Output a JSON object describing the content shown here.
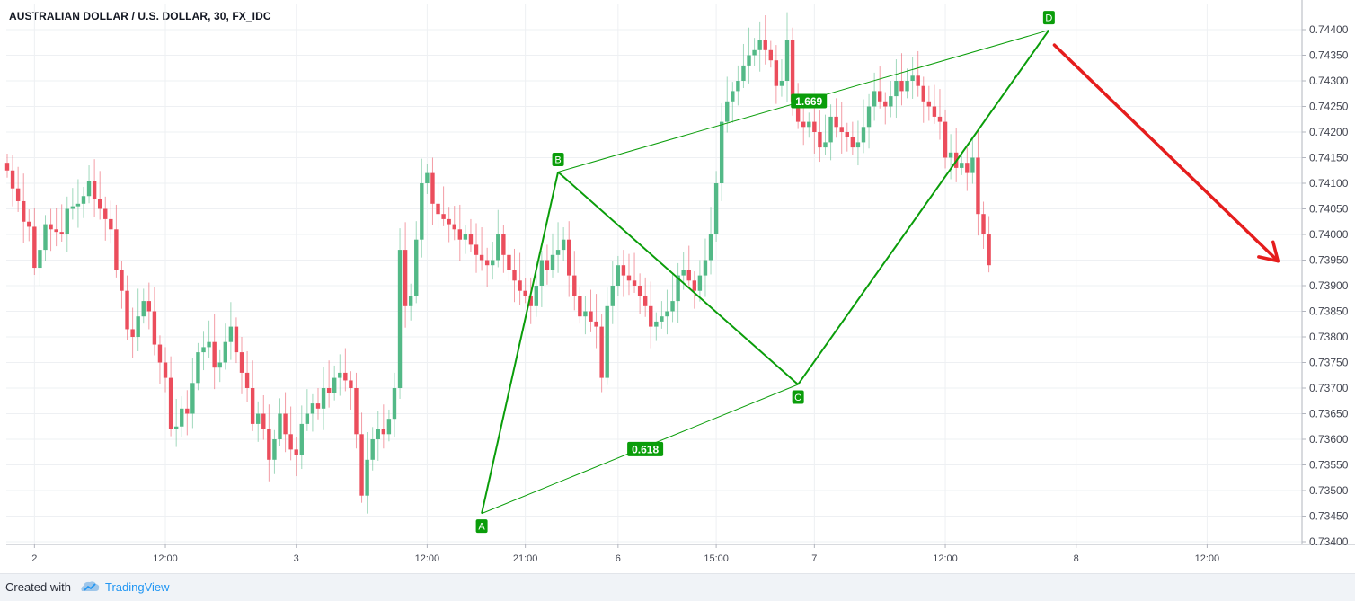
{
  "chart_data": {
    "type": "candlestick",
    "title": "AUSTRALIAN DOLLAR / U.S. DOLLAR, 30, FX_IDC",
    "ylim": [
      0.73425,
      0.74425
    ],
    "y_ticks": [
      "0.74400",
      "0.74350",
      "0.74300",
      "0.74250",
      "0.74200",
      "0.74150",
      "0.74100",
      "0.74050",
      "0.74000",
      "0.73950",
      "0.73900",
      "0.73850",
      "0.73800",
      "0.73750",
      "0.73700",
      "0.73650",
      "0.73600",
      "0.73550",
      "0.73500",
      "0.73450",
      "0.73400"
    ],
    "x_ticks": [
      {
        "label": "2",
        "bar": 5
      },
      {
        "label": "12:00",
        "bar": 29
      },
      {
        "label": "3",
        "bar": 53
      },
      {
        "label": "12:00",
        "bar": 77
      },
      {
        "label": "21:00",
        "bar": 95
      },
      {
        "label": "6",
        "bar": 112
      },
      {
        "label": "15:00",
        "bar": 130
      },
      {
        "label": "7",
        "bar": 148
      },
      {
        "label": "12:00",
        "bar": 172
      },
      {
        "label": "8",
        "bar": 196
      },
      {
        "label": "12:00",
        "bar": 220
      }
    ],
    "colors": {
      "up": "#53b987",
      "down": "#eb4d5c",
      "pattern": "#0a9d0a",
      "pattern_label_bg": "#0a9d0a",
      "arrow": "#e51d1d",
      "grid": "#eef0f3"
    },
    "closes": [
      0.74125,
      0.7409,
      0.74065,
      0.74025,
      0.74015,
      0.73935,
      0.7397,
      0.7402,
      0.7401,
      0.74005,
      0.74,
      0.7405,
      0.74055,
      0.7406,
      0.74075,
      0.74105,
      0.7407,
      0.7405,
      0.7403,
      0.7401,
      0.7393,
      0.7389,
      0.73815,
      0.738,
      0.7384,
      0.7387,
      0.7385,
      0.73785,
      0.7375,
      0.7372,
      0.7362,
      0.73625,
      0.7366,
      0.7365,
      0.7371,
      0.7377,
      0.7378,
      0.7379,
      0.7374,
      0.7375,
      0.7379,
      0.7382,
      0.7377,
      0.7373,
      0.737,
      0.7363,
      0.7365,
      0.7362,
      0.7356,
      0.736,
      0.7365,
      0.7361,
      0.7358,
      0.7357,
      0.7363,
      0.7365,
      0.7367,
      0.7366,
      0.737,
      0.7369,
      0.7372,
      0.7373,
      0.73715,
      0.737,
      0.7361,
      0.7349,
      0.7356,
      0.736,
      0.7362,
      0.7361,
      0.7364,
      0.737,
      0.7397,
      0.7386,
      0.7388,
      0.7399,
      0.741,
      0.7412,
      0.7406,
      0.7404,
      0.7403,
      0.7402,
      0.7401,
      0.7399,
      0.74,
      0.7398,
      0.7396,
      0.7395,
      0.7394,
      0.7395,
      0.74,
      0.7396,
      0.7393,
      0.7391,
      0.7389,
      0.7388,
      0.7386,
      0.739,
      0.7395,
      0.7393,
      0.7396,
      0.7397,
      0.7399,
      0.7392,
      0.7388,
      0.7384,
      0.7385,
      0.7383,
      0.7382,
      0.7372,
      0.7386,
      0.739,
      0.7394,
      0.7392,
      0.7391,
      0.739,
      0.7388,
      0.7386,
      0.7382,
      0.7383,
      0.7384,
      0.7385,
      0.7387,
      0.7392,
      0.7393,
      0.7391,
      0.7389,
      0.7392,
      0.7395,
      0.74,
      0.741,
      0.7422,
      0.7426,
      0.7428,
      0.743,
      0.7433,
      0.7435,
      0.7436,
      0.7438,
      0.7436,
      0.7434,
      0.7429,
      0.743,
      0.7438,
      0.7426,
      0.7422,
      0.7421,
      0.7422,
      0.742,
      0.7417,
      0.7418,
      0.7423,
      0.7421,
      0.742,
      0.7419,
      0.7417,
      0.7418,
      0.7421,
      0.7425,
      0.7428,
      0.7426,
      0.7425,
      0.7427,
      0.743,
      0.7428,
      0.743,
      0.7431,
      0.7429,
      0.7426,
      0.7425,
      0.7423,
      0.7422,
      0.7415,
      0.7416,
      0.7413,
      0.7414,
      0.7412,
      0.7415,
      0.7404,
      0.74,
      0.7394
    ]
  },
  "pattern": {
    "points": [
      {
        "label": "A",
        "bar": 87,
        "price": 0.73455,
        "side": "below"
      },
      {
        "label": "B",
        "bar": 101,
        "price": 0.74122,
        "side": "above"
      },
      {
        "label": "C",
        "bar": 145,
        "price": 0.73707,
        "side": "below"
      },
      {
        "label": "D",
        "bar": 191,
        "price": 0.74399,
        "side": "above"
      }
    ],
    "ratios": [
      {
        "label": "1.669",
        "from": "B",
        "to": "D"
      },
      {
        "label": "0.618",
        "from": "A",
        "to": "C"
      }
    ],
    "arrow": {
      "from_bar": 192,
      "from_price": 0.7437,
      "to_bar": 233,
      "to_price": 0.73948
    }
  },
  "footer": {
    "created_with": "Created with",
    "brand": "TradingView"
  }
}
